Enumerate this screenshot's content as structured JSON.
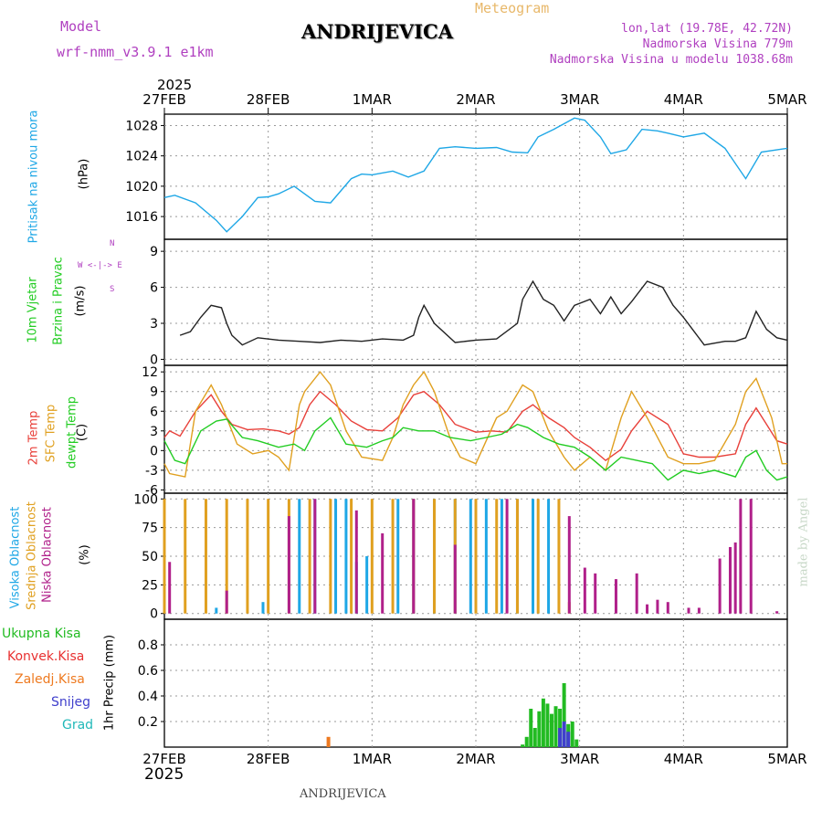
{
  "header": {
    "model_label": "Model",
    "model_name": "wrf-nmm_v3.9.1  e1km",
    "station": "ANDRIJEVICA",
    "product": "Meteogram",
    "coords": "lon,lat (19.78E, 42.72N)",
    "elevation": "Nadmorska Visina 779m",
    "model_elevation": "Nadmorska Visina u modelu 1038.68m",
    "credit": "made by Angel",
    "footer_station": "ANDRIJEVICA"
  },
  "colors": {
    "pressure": "#1ea7e6",
    "t2m": "#e8403a",
    "sfc": "#e0a020",
    "dew": "#22cc22",
    "high_cloud": "#1ea7e6",
    "mid_cloud": "#e0a020",
    "low_cloud": "#b0208a",
    "total_precip": "#22bb22",
    "conv_precip": "#e83030",
    "frozen_precip": "#ee7a20",
    "snow": "#4040cc",
    "hail": "#20b8b8",
    "wind_label": "#22cc22",
    "compass": "#b040c0",
    "model_text": "#b040c0"
  },
  "time_axis": {
    "year": "2025",
    "ticks": [
      "27FEB",
      "28FEB",
      "1MAR",
      "2MAR",
      "3MAR",
      "4MAR",
      "5MAR"
    ]
  },
  "panels": {
    "pressure": {
      "label": "Pritisak na nivou mora",
      "unit": "(hPa)"
    },
    "wind": {
      "label1": "10m Vjetar",
      "label2": "Brzina i Pravac",
      "unit": "(m/s)",
      "compass": "W <-|-> E",
      "north": "N",
      "south": "S"
    },
    "temp": {
      "label_t2m": "2m Temp",
      "label_sfc": "SFC Temp",
      "label_dew": "dewpt Temp",
      "unit": "(C)"
    },
    "cloud": {
      "label_high": "Visoka Oblacnost",
      "label_mid": "Srednja Oblacnost",
      "label_low": "Niska Oblacnost",
      "unit": "(%)"
    },
    "precip": {
      "labels": [
        "Ukupna Kisa",
        "Konvek.Kisa",
        "Zaledj.Kisa",
        "Snijeg",
        "Grad"
      ],
      "unit": "1hr Precip (mm)"
    }
  },
  "chart_data": [
    {
      "type": "line",
      "name": "pressure",
      "x_unit": "days since 27FEB 00",
      "ylim": [
        1013,
        1029.5
      ],
      "yticks": [
        1016,
        1020,
        1024,
        1028
      ],
      "grid": true,
      "series": [
        {
          "name": "Pritisak na nivou mora",
          "x": [
            0,
            0.1,
            0.3,
            0.5,
            0.6,
            0.75,
            0.9,
            1.0,
            1.1,
            1.25,
            1.45,
            1.6,
            1.8,
            1.9,
            2.0,
            2.2,
            2.35,
            2.5,
            2.65,
            2.8,
            3.0,
            3.2,
            3.35,
            3.5,
            3.6,
            3.75,
            3.95,
            4.05,
            4.2,
            4.3,
            4.45,
            4.6,
            4.75,
            4.85,
            5.0,
            5.2,
            5.4,
            5.6,
            5.75,
            5.95,
            6.0
          ],
          "values": [
            1018.5,
            1018.8,
            1017.8,
            1015.5,
            1014.0,
            1016.0,
            1018.5,
            1018.6,
            1019.0,
            1020.0,
            1018.0,
            1017.8,
            1021.0,
            1021.6,
            1021.5,
            1022.0,
            1021.2,
            1022.0,
            1025.0,
            1025.2,
            1025.0,
            1025.1,
            1024.5,
            1024.4,
            1026.5,
            1027.5,
            1029.0,
            1028.7,
            1026.5,
            1024.3,
            1024.8,
            1027.5,
            1027.3,
            1027.0,
            1026.5,
            1027.0,
            1025.0,
            1021.0,
            1024.5,
            1024.9,
            1025.0
          ]
        }
      ]
    },
    {
      "type": "line",
      "name": "wind",
      "x_unit": "days since 27FEB 00",
      "ylim": [
        -0.5,
        10
      ],
      "yticks": [
        0,
        3,
        6,
        9
      ],
      "grid": true,
      "series": [
        {
          "name": "10m wind speed",
          "x": [
            0.15,
            0.25,
            0.35,
            0.45,
            0.55,
            0.6,
            0.65,
            0.75,
            0.9,
            1.1,
            1.3,
            1.5,
            1.7,
            1.9,
            2.1,
            2.3,
            2.4,
            2.45,
            2.5,
            2.6,
            2.8,
            3.0,
            3.2,
            3.4,
            3.45,
            3.55,
            3.65,
            3.75,
            3.85,
            3.95,
            4.1,
            4.2,
            4.3,
            4.4,
            4.5,
            4.65,
            4.8,
            4.9,
            5.0,
            5.2,
            5.4,
            5.5,
            5.6,
            5.7,
            5.8,
            5.9,
            6.0
          ],
          "values": [
            2.0,
            2.3,
            3.5,
            4.5,
            4.3,
            3.0,
            2.0,
            1.2,
            1.8,
            1.6,
            1.5,
            1.4,
            1.6,
            1.5,
            1.7,
            1.6,
            2.0,
            3.5,
            4.5,
            3.0,
            1.4,
            1.6,
            1.7,
            3.0,
            5.0,
            6.5,
            5.0,
            4.5,
            3.2,
            4.5,
            5.0,
            3.8,
            5.2,
            3.8,
            4.8,
            6.5,
            6.0,
            4.5,
            3.5,
            1.2,
            1.5,
            1.5,
            1.8,
            4.0,
            2.5,
            1.8,
            1.6
          ]
        }
      ]
    },
    {
      "type": "line",
      "name": "temperature",
      "x_unit": "days since 27FEB 00",
      "ylim": [
        -6.5,
        13
      ],
      "yticks": [
        -6,
        -3,
        0,
        3,
        6,
        9,
        12
      ],
      "grid": true,
      "series": [
        {
          "name": "2m Temp",
          "x": [
            0,
            0.05,
            0.15,
            0.3,
            0.45,
            0.55,
            0.65,
            0.8,
            0.95,
            1.1,
            1.2,
            1.3,
            1.4,
            1.5,
            1.65,
            1.8,
            1.95,
            2.1,
            2.25,
            2.4,
            2.5,
            2.65,
            2.8,
            3.0,
            3.15,
            3.3,
            3.45,
            3.55,
            3.7,
            3.85,
            3.95,
            4.1,
            4.25,
            4.4,
            4.5,
            4.65,
            4.85,
            5.0,
            5.15,
            5.3,
            5.5,
            5.6,
            5.7,
            5.8,
            5.9,
            6.0
          ],
          "values": [
            2.0,
            3.0,
            2.2,
            6.0,
            8.5,
            6.0,
            4.0,
            3.2,
            3.3,
            3.0,
            2.5,
            3.5,
            7.0,
            9.0,
            7.0,
            4.5,
            3.2,
            3.0,
            5.0,
            8.5,
            9.0,
            7.0,
            4.0,
            2.8,
            3.0,
            2.8,
            6.0,
            7.0,
            5.0,
            3.5,
            2.0,
            0.5,
            -1.5,
            0.2,
            3.0,
            6.0,
            4.0,
            -0.5,
            -1.0,
            -1.0,
            -0.5,
            4.0,
            6.5,
            4.0,
            1.5,
            1.0
          ]
        },
        {
          "name": "SFC Temp",
          "x": [
            0,
            0.05,
            0.2,
            0.3,
            0.45,
            0.55,
            0.7,
            0.85,
            1.0,
            1.1,
            1.2,
            1.3,
            1.35,
            1.5,
            1.6,
            1.75,
            1.9,
            2.1,
            2.2,
            2.3,
            2.4,
            2.5,
            2.6,
            2.75,
            2.85,
            3.0,
            3.2,
            3.3,
            3.45,
            3.55,
            3.7,
            3.85,
            3.95,
            4.1,
            4.25,
            4.4,
            4.5,
            4.65,
            4.85,
            5.0,
            5.15,
            5.3,
            5.5,
            5.6,
            5.7,
            5.85,
            5.95,
            6.0
          ],
          "values": [
            -2.0,
            -3.5,
            -4.0,
            6.0,
            10.0,
            7.0,
            1.0,
            -0.5,
            0.0,
            -1.0,
            -3.0,
            7.0,
            9.0,
            12.0,
            10.0,
            3.0,
            -1.0,
            -1.5,
            2.0,
            7.0,
            10.0,
            12.0,
            9.0,
            2.0,
            -1.0,
            -2.0,
            5.0,
            6.0,
            10.0,
            9.0,
            3.0,
            -1.0,
            -3.0,
            -1.0,
            -3.0,
            5.0,
            9.0,
            5.0,
            -1.0,
            -2.0,
            -2.0,
            -1.5,
            4.0,
            9.0,
            11.0,
            5.0,
            -2.0,
            -2.0
          ]
        },
        {
          "name": "dewpt Temp",
          "x": [
            0,
            0.1,
            0.2,
            0.35,
            0.5,
            0.6,
            0.75,
            0.9,
            1.1,
            1.25,
            1.35,
            1.45,
            1.6,
            1.75,
            1.95,
            2.1,
            2.2,
            2.3,
            2.45,
            2.6,
            2.75,
            2.95,
            3.1,
            3.25,
            3.4,
            3.5,
            3.65,
            3.8,
            3.95,
            4.1,
            4.25,
            4.4,
            4.55,
            4.7,
            4.85,
            5.0,
            5.15,
            5.3,
            5.5,
            5.6,
            5.7,
            5.8,
            5.9,
            6.0
          ],
          "values": [
            1.5,
            -1.5,
            -2.0,
            3.0,
            4.5,
            4.8,
            2.0,
            1.5,
            0.5,
            1.0,
            0.0,
            3.0,
            5.0,
            1.0,
            0.5,
            1.5,
            2.0,
            3.5,
            3.0,
            3.0,
            2.0,
            1.5,
            2.0,
            2.5,
            4.0,
            3.5,
            2.0,
            1.0,
            0.5,
            -1.0,
            -3.0,
            -1.0,
            -1.5,
            -2.0,
            -4.5,
            -3.0,
            -3.5,
            -3.0,
            -4.0,
            -1.0,
            0.0,
            -3.0,
            -4.5,
            -4.0
          ]
        }
      ]
    },
    {
      "type": "bar",
      "name": "cloud_cover",
      "x_unit": "days since 27FEB 00",
      "ylim": [
        -5,
        105
      ],
      "yticks": [
        0,
        25,
        50,
        75,
        100
      ],
      "grid": true,
      "series": [
        {
          "name": "Visoka Oblacnost",
          "x": [
            0.5,
            0.95,
            1.3,
            1.45,
            1.65,
            1.75,
            1.85,
            1.95,
            2.25,
            2.4,
            2.6,
            2.8,
            2.95,
            3.1,
            3.25,
            3.4,
            3.55,
            3.7
          ],
          "values": [
            5,
            10,
            100,
            100,
            100,
            100,
            45,
            50,
            100,
            100,
            100,
            100,
            100,
            100,
            100,
            100,
            100,
            100
          ]
        },
        {
          "name": "Srednja Oblacnost",
          "x": [
            0.0,
            0.2,
            0.4,
            0.6,
            0.8,
            1.0,
            1.2,
            1.4,
            1.6,
            1.8,
            2.0,
            2.2,
            2.4,
            2.6,
            2.8,
            3.0,
            3.2,
            3.4,
            3.6,
            3.8,
            3.9
          ],
          "values": [
            100,
            100,
            100,
            100,
            100,
            100,
            100,
            100,
            100,
            100,
            100,
            100,
            100,
            100,
            100,
            100,
            100,
            100,
            100,
            100,
            10
          ]
        },
        {
          "name": "Niska Oblacnost",
          "x": [
            0.05,
            0.6,
            1.2,
            1.45,
            1.85,
            2.1,
            2.4,
            2.8,
            3.3,
            3.9,
            4.05,
            4.15,
            4.35,
            4.55,
            4.65,
            4.75,
            4.85,
            5.05,
            5.15,
            5.35,
            5.45,
            5.5,
            5.55,
            5.65,
            5.9
          ],
          "values": [
            45,
            20,
            85,
            100,
            90,
            70,
            100,
            60,
            100,
            85,
            40,
            35,
            30,
            35,
            8,
            12,
            10,
            5,
            5,
            48,
            58,
            62,
            100,
            100,
            2
          ]
        }
      ]
    },
    {
      "type": "bar",
      "name": "precipitation",
      "x_unit": "days since 27FEB 00",
      "ylim": [
        0,
        1.0
      ],
      "yticks": [
        0.2,
        0.4,
        0.6,
        0.8
      ],
      "grid": true,
      "series": [
        {
          "name": "Ukupna Kisa",
          "x": [
            3.45,
            3.49,
            3.53,
            3.57,
            3.61,
            3.65,
            3.69,
            3.73,
            3.77,
            3.81,
            3.85,
            3.89,
            3.93,
            3.97
          ],
          "values": [
            0.02,
            0.08,
            0.3,
            0.15,
            0.28,
            0.38,
            0.34,
            0.26,
            0.32,
            0.3,
            0.5,
            0.18,
            0.2,
            0.06
          ]
        },
        {
          "name": "Zaledj.Kisa",
          "x": [
            1.58
          ],
          "values": [
            0.08
          ]
        },
        {
          "name": "Snijeg",
          "x": [
            3.81,
            3.85,
            3.89
          ],
          "values": [
            0.15,
            0.2,
            0.12
          ]
        }
      ]
    }
  ]
}
